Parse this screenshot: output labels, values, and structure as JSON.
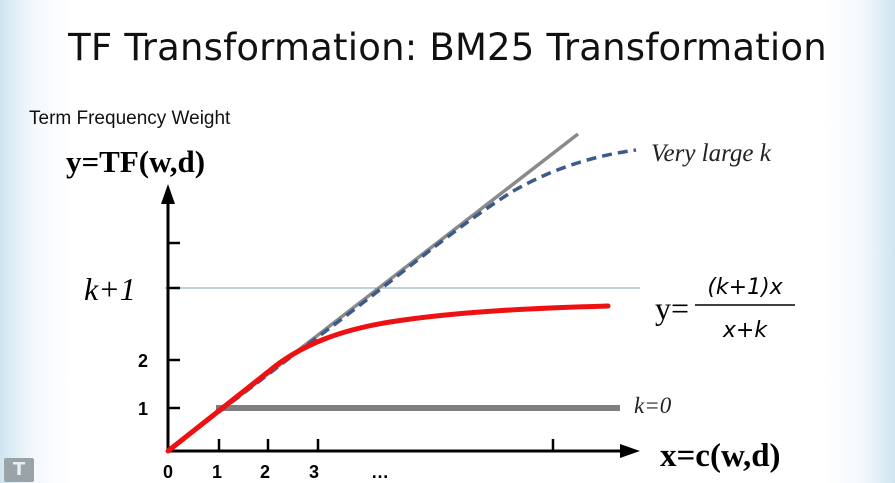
{
  "slide": {
    "title": "TF Transformation: BM25 Transformation"
  },
  "figure": {
    "y_caption": "Term Frequency Weight",
    "y_axis_label": "y=TF(w,d)",
    "x_axis_label": "x=c(w,d)",
    "k_plus_1_label": "k+1",
    "curve_labels": {
      "very_large_k": "Very large k",
      "k_zero": "k=0"
    },
    "formula": {
      "lhs": "y=",
      "numerator": "(k+1)x",
      "denominator": "x+k"
    },
    "x_ticks": [
      "0",
      "1",
      "2",
      "3",
      "…"
    ],
    "y_ticks": [
      "1",
      "2"
    ]
  },
  "colors": {
    "axis": "#000000",
    "identity_line": "#8a8a8a",
    "very_large_k_curve": "#3b5b8c",
    "bm25_curve": "#ee1111",
    "k_zero_line": "#7f7f7f",
    "k_plus_1_line": "#7fa3c2"
  },
  "logo_text": "T"
}
